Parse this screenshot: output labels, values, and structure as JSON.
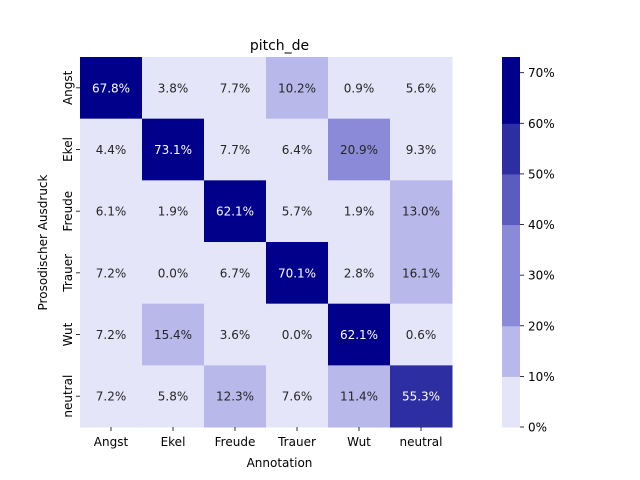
{
  "chart_data": {
    "type": "heatmap",
    "title": "pitch_de",
    "xlabel": "Annotation",
    "ylabel": "Prosodischer Ausdruck",
    "x_categories": [
      "Angst",
      "Ekel",
      "Freude",
      "Trauer",
      "Wut",
      "neutral"
    ],
    "y_categories": [
      "Angst",
      "Ekel",
      "Freude",
      "Trauer",
      "Wut",
      "neutral"
    ],
    "values": [
      [
        67.8,
        3.8,
        7.7,
        10.2,
        0.9,
        5.6
      ],
      [
        4.4,
        73.1,
        7.7,
        6.4,
        20.9,
        9.3
      ],
      [
        6.1,
        1.9,
        62.1,
        5.7,
        1.9,
        13.0
      ],
      [
        7.2,
        0.0,
        6.7,
        70.1,
        2.8,
        16.1
      ],
      [
        7.2,
        15.4,
        3.6,
        0.0,
        62.1,
        0.6
      ],
      [
        7.2,
        5.8,
        12.3,
        7.6,
        11.4,
        55.3
      ]
    ],
    "value_format": "{v:.1f}%",
    "colorbar": {
      "range": [
        0,
        73.1
      ],
      "ticks": [
        "0%",
        "10%",
        "20%",
        "30%",
        "40%",
        "50%",
        "60%",
        "70%"
      ],
      "tick_values": [
        0,
        10,
        20,
        30,
        40,
        50,
        60,
        70
      ],
      "levels": [
        {
          "from": 0,
          "to": 10,
          "color": "#e5e5fa"
        },
        {
          "from": 10,
          "to": 20,
          "color": "#b8b8ea"
        },
        {
          "from": 20,
          "to": 30,
          "color": "#8a8ad8"
        },
        {
          "from": 30,
          "to": 40,
          "color": "#8a8ad8"
        },
        {
          "from": 40,
          "to": 50,
          "color": "#5c5cc0"
        },
        {
          "from": 50,
          "to": 60,
          "color": "#2e2ea3"
        },
        {
          "from": 60,
          "to": 100,
          "color": "#00008b"
        }
      ]
    },
    "text_colors": {
      "light_cell": "#262626",
      "dark_cell": "#ffffff"
    }
  }
}
